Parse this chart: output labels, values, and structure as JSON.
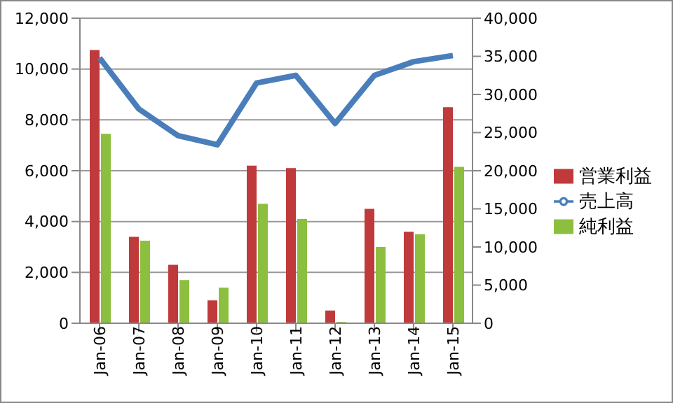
{
  "chart_data": {
    "type": "bar",
    "categories": [
      "Jan-06",
      "Jan-07",
      "Jan-08",
      "Jan-09",
      "Jan-10",
      "Jan-11",
      "Jan-12",
      "Jan-13",
      "Jan-14",
      "Jan-15"
    ],
    "series": [
      {
        "name": "営業利益",
        "color": "#c0393b",
        "values": [
          10750,
          3400,
          2300,
          900,
          6200,
          6100,
          500,
          4500,
          3600,
          8500
        ]
      },
      {
        "name": "純利益",
        "color": "#8cbf3f",
        "values": [
          7450,
          3250,
          1700,
          1400,
          4700,
          4100,
          50,
          3000,
          3500,
          6150
        ]
      },
      {
        "name": "売上高",
        "type": "line",
        "axis": "y2",
        "color": "#4a7ebb",
        "marker": "none",
        "values": [
          34800,
          28100,
          24600,
          23400,
          31500,
          32500,
          26200,
          32500,
          34300,
          35100
        ]
      }
    ],
    "ylim": [
      0,
      12000
    ],
    "yticks": [
      {
        "value": 0,
        "label": "0"
      },
      {
        "value": 2000,
        "label": "2,000"
      },
      {
        "value": 4000,
        "label": "4,000"
      },
      {
        "value": 6000,
        "label": "6,000"
      },
      {
        "value": 8000,
        "label": "8,000"
      },
      {
        "value": 10000,
        "label": "10,000"
      },
      {
        "value": 12000,
        "label": "12,000"
      }
    ],
    "y2lim": [
      0,
      40000
    ],
    "y2ticks": [
      {
        "value": 0,
        "label": "0"
      },
      {
        "value": 5000,
        "label": "5,000"
      },
      {
        "value": 10000,
        "label": "10,000"
      },
      {
        "value": 15000,
        "label": "15,000"
      },
      {
        "value": 20000,
        "label": "20,000"
      },
      {
        "value": 25000,
        "label": "25,000"
      },
      {
        "value": 30000,
        "label": "30,000"
      },
      {
        "value": 35000,
        "label": "35,000"
      },
      {
        "value": 40000,
        "label": "40,000"
      }
    ],
    "grid": "y",
    "legend": "right"
  }
}
